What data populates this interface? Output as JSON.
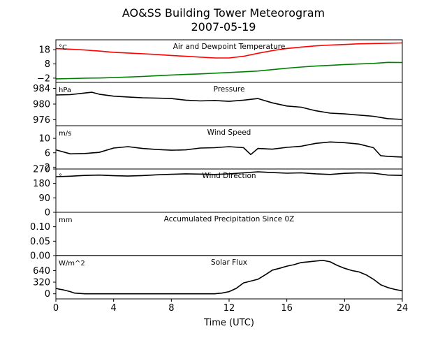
{
  "title": "AO&SS Building Tower Meteorogram",
  "subtitle": "2007-05-19",
  "xlabel": "Time (UTC)",
  "chart_data": {
    "type": "line",
    "xlim": [
      0,
      24
    ],
    "xticks": [
      0,
      4,
      8,
      12,
      16,
      20,
      24
    ],
    "panels": [
      {
        "id": "temperature",
        "title": "Air and Dewpoint Temperature",
        "unit": "°C",
        "ylim": [
          -5,
          25
        ],
        "yticks": [
          -2,
          8,
          18
        ],
        "series": [
          {
            "color": "#ff0000",
            "x": [
              0,
              1,
              2,
              3,
              4,
              5,
              6,
              7,
              8,
              9,
              10,
              11,
              12,
              13,
              14,
              15,
              16,
              17,
              18,
              19,
              20,
              21,
              22,
              23,
              24
            ],
            "y": [
              18.8,
              18.4,
              17.8,
              17.1,
              16.2,
              15.7,
              15.2,
              14.6,
              14.0,
              13.4,
              12.8,
              12.2,
              12.2,
              13.4,
              15.5,
              17.4,
              18.9,
              19.9,
              20.7,
              21.3,
              21.7,
              22.2,
              22.4,
              22.6,
              22.8
            ]
          },
          {
            "color": "#008000",
            "x": [
              0,
              1,
              2,
              3,
              4,
              5,
              6,
              7,
              8,
              9,
              10,
              11,
              12,
              13,
              14,
              15,
              16,
              17,
              18,
              19,
              20,
              21,
              22,
              23,
              24
            ],
            "y": [
              -2.5,
              -2.3,
              -2.0,
              -1.9,
              -1.6,
              -1.2,
              -0.8,
              -0.3,
              0.2,
              0.6,
              1.0,
              1.5,
              2.0,
              2.5,
              3.0,
              4.0,
              5.0,
              5.8,
              6.5,
              7.0,
              7.6,
              8.0,
              8.4,
              9.1,
              9.0
            ]
          }
        ]
      },
      {
        "id": "pressure",
        "title": "Pressure",
        "unit": "hPa",
        "ylim": [
          974.5,
          985.5
        ],
        "yticks": [
          976,
          980,
          984
        ],
        "series": [
          {
            "color": "#000000",
            "x": [
              0,
              1,
              2,
              2.5,
              3,
              4,
              5,
              6,
              7,
              8,
              9,
              10,
              11,
              12,
              13,
              14,
              15,
              16,
              17,
              18,
              19,
              20,
              21,
              22,
              23,
              24
            ],
            "y": [
              982.3,
              982.4,
              982.8,
              983.0,
              982.5,
              982.0,
              981.8,
              981.6,
              981.5,
              981.4,
              981.0,
              980.8,
              980.9,
              980.7,
              981.0,
              981.4,
              980.3,
              979.5,
              979.2,
              978.3,
              977.7,
              977.5,
              977.2,
              976.9,
              976.3,
              976.1
            ]
          }
        ]
      },
      {
        "id": "wind-speed",
        "title": "Wind Speed",
        "unit": "m/s",
        "ylim": [
          1.5,
          13.5
        ],
        "yticks": [
          2,
          6,
          10
        ],
        "series": [
          {
            "color": "#000000",
            "x": [
              0,
              1,
              2,
              3,
              4,
              5,
              6,
              7,
              8,
              9,
              10,
              11,
              12,
              13,
              13.5,
              14,
              15,
              16,
              17,
              18,
              19,
              20,
              21,
              22,
              22.5,
              23,
              24
            ],
            "y": [
              6.8,
              5.7,
              5.8,
              6.1,
              7.3,
              7.7,
              7.2,
              6.9,
              6.7,
              6.8,
              7.3,
              7.4,
              7.7,
              7.4,
              5.5,
              7.2,
              7.0,
              7.5,
              7.8,
              8.6,
              9.0,
              8.8,
              8.4,
              7.4,
              5.2,
              5.0,
              4.8
            ]
          }
        ]
      },
      {
        "id": "wind-direction",
        "title": "Wind Direction",
        "unit": "°",
        "ylim": [
          0,
          270
        ],
        "yticks": [
          0,
          90,
          180,
          270
        ],
        "series": [
          {
            "color": "#000000",
            "x": [
              0,
              1,
              2,
              3,
              4,
              5,
              6,
              7,
              8,
              9,
              10,
              11,
              12,
              13,
              14,
              15,
              16,
              17,
              18,
              19,
              20,
              21,
              22,
              23,
              24
            ],
            "y": [
              222,
              225,
              230,
              232,
              228,
              226,
              229,
              234,
              237,
              240,
              238,
              236,
              240,
              246,
              252,
              248,
              244,
              246,
              240,
              236,
              243,
              246,
              244,
              232,
              230
            ]
          }
        ]
      },
      {
        "id": "precipitation",
        "title": "Accumulated Precipitation Since 0Z",
        "unit": "mm",
        "ylim": [
          0,
          0.15
        ],
        "yticks": [
          0.0,
          0.05,
          0.1
        ],
        "ytick_labels": [
          "0.00",
          "0.05",
          "0.10"
        ],
        "series": [
          {
            "color": "#000000",
            "x": [
              0,
              24
            ],
            "y": [
              0,
              0
            ]
          }
        ]
      },
      {
        "id": "solar-flux",
        "title": "Solar Flux",
        "unit": "W/m^2",
        "ylim": [
          -140,
          1050
        ],
        "yticks": [
          0,
          320,
          640
        ],
        "series": [
          {
            "color": "#000000",
            "x": [
              0,
              0.2,
              0.5,
              1,
              1.3,
              2,
              4,
              6,
              8,
              10,
              11,
              11.5,
              12,
              12.5,
              13,
              13.5,
              14,
              14.5,
              15,
              15.5,
              16,
              16.5,
              17,
              17.5,
              18,
              18.5,
              19,
              19.5,
              20,
              20.5,
              21,
              21.5,
              22,
              22.5,
              23,
              23.5,
              24
            ],
            "y": [
              150,
              130,
              110,
              60,
              20,
              0,
              0,
              0,
              0,
              0,
              0,
              20,
              60,
              150,
              300,
              350,
              400,
              520,
              650,
              700,
              760,
              800,
              860,
              880,
              900,
              920,
              880,
              780,
              700,
              640,
              600,
              520,
              400,
              250,
              170,
              120,
              80
            ]
          }
        ]
      }
    ]
  }
}
